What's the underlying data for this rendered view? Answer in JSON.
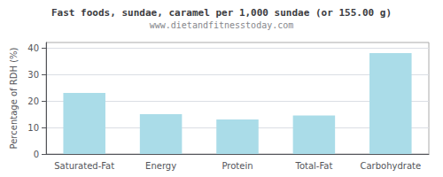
{
  "chart_data": {
    "type": "bar",
    "title": "Fast foods, sundae, caramel per 1,000 sundae (or 155.00 g)",
    "subtitle": "www.dietandfitnesstoday.com",
    "ylabel": "Percentage of RDH (%)",
    "categories": [
      "Saturated-Fat",
      "Energy",
      "Protein",
      "Total-Fat",
      "Carbohydrate"
    ],
    "values": [
      23,
      15,
      13,
      14.5,
      38
    ],
    "color": "#aadce8",
    "ylim": [
      0,
      42
    ],
    "yticks": [
      0,
      10,
      20,
      30,
      40
    ],
    "grid": true
  }
}
